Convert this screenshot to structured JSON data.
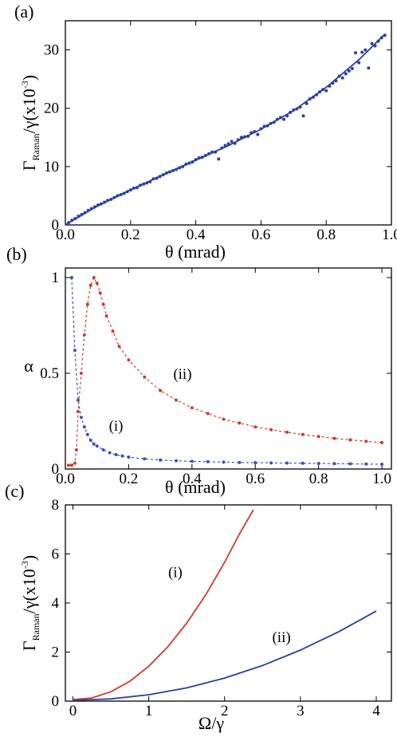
{
  "chart_data": [
    {
      "panel": "(a)",
      "type": "scatter",
      "xlabel": "θ (mrad)",
      "ylabel_main": "Γ",
      "ylabel_sub": "Raman",
      "ylabel_rest": "/γ(x10",
      "ylabel_sup": "-3",
      "ylabel_close": ")",
      "xlim": [
        0,
        1.0
      ],
      "ylim": [
        0,
        35
      ],
      "xticks": [
        0.0,
        0.2,
        0.4,
        0.6,
        0.8,
        1.0
      ],
      "xtick_labels": [
        "0.0",
        "0.2",
        "0.4",
        "0.6",
        "0.8",
        "1.0"
      ],
      "yticks": [
        0,
        10,
        20,
        30
      ],
      "ytick_labels": [
        "0",
        "10",
        "20",
        "30"
      ],
      "color": "#2B3FA0",
      "series": [
        {
          "style": "line",
          "x": [
            0,
            0.1,
            0.2,
            0.3,
            0.4,
            0.5,
            0.6,
            0.7,
            0.8,
            0.9,
            0.98
          ],
          "y": [
            0,
            3.3,
            6.0,
            8.6,
            11.1,
            13.6,
            16.4,
            19.6,
            23.6,
            28.3,
            32.7
          ]
        },
        {
          "style": "points",
          "x": [
            0.01,
            0.02,
            0.03,
            0.04,
            0.05,
            0.06,
            0.07,
            0.08,
            0.09,
            0.1,
            0.11,
            0.12,
            0.13,
            0.14,
            0.15,
            0.16,
            0.17,
            0.18,
            0.19,
            0.2,
            0.21,
            0.22,
            0.23,
            0.24,
            0.25,
            0.26,
            0.27,
            0.28,
            0.29,
            0.3,
            0.31,
            0.32,
            0.33,
            0.34,
            0.35,
            0.36,
            0.37,
            0.38,
            0.39,
            0.4,
            0.41,
            0.42,
            0.43,
            0.44,
            0.45,
            0.46,
            0.47,
            0.48,
            0.49,
            0.5,
            0.51,
            0.52,
            0.53,
            0.54,
            0.55,
            0.56,
            0.57,
            0.58,
            0.59,
            0.6,
            0.61,
            0.62,
            0.63,
            0.64,
            0.65,
            0.66,
            0.67,
            0.68,
            0.69,
            0.7,
            0.71,
            0.72,
            0.73,
            0.74,
            0.75,
            0.76,
            0.77,
            0.78,
            0.79,
            0.8,
            0.81,
            0.82,
            0.83,
            0.84,
            0.85,
            0.86,
            0.87,
            0.88,
            0.89,
            0.9,
            0.91,
            0.92,
            0.93,
            0.94,
            0.95,
            0.96,
            0.97,
            0.98
          ],
          "y": [
            0.4,
            0.8,
            1.1,
            1.5,
            1.8,
            2.1,
            2.5,
            2.8,
            3.1,
            3.4,
            3.6,
            3.9,
            4.2,
            4.4,
            4.7,
            5.0,
            5.2,
            5.4,
            5.7,
            6.0,
            6.3,
            6.4,
            6.8,
            7.0,
            7.2,
            7.4,
            7.9,
            8.0,
            8.3,
            8.6,
            8.9,
            9.1,
            9.3,
            9.5,
            9.8,
            10.0,
            10.4,
            10.6,
            10.8,
            11.2,
            11.5,
            11.6,
            11.9,
            12.2,
            12.5,
            12.5,
            11.3,
            13.2,
            13.6,
            13.9,
            14.3,
            14.0,
            14.6,
            15.0,
            15.1,
            15.2,
            15.8,
            16.0,
            15.5,
            16.5,
            16.9,
            17.0,
            17.4,
            17.6,
            18.1,
            18.4,
            18.1,
            18.7,
            19.3,
            19.7,
            19.9,
            20.2,
            18.7,
            20.8,
            21.6,
            21.9,
            22.3,
            22.8,
            23.2,
            23.0,
            23.8,
            24.3,
            24.7,
            25.5,
            25.2,
            25.9,
            26.4,
            26.8,
            29.5,
            27.8,
            29.6,
            30.0,
            26.9,
            31.1,
            30.7,
            31.5,
            32.1,
            32.5
          ]
        }
      ]
    },
    {
      "panel": "(b)",
      "type": "line",
      "xlabel": "θ (mrad)",
      "ylabel": "α",
      "xlim": [
        0,
        1.03
      ],
      "ylim": [
        0,
        1.05
      ],
      "xticks": [
        0.0,
        0.2,
        0.4,
        0.6,
        0.8,
        1.0
      ],
      "xtick_labels": [
        "0.0",
        "0.2",
        "0.4",
        "0.6",
        "0.8",
        "1.0"
      ],
      "yticks": [
        0,
        0.5,
        1
      ],
      "ytick_labels": [
        "0",
        "0.5",
        "1"
      ],
      "annotations": [
        {
          "text": "(i)",
          "x": 0.16,
          "y": 0.2
        },
        {
          "text": "(ii)",
          "x": 0.37,
          "y": 0.47
        }
      ],
      "series": [
        {
          "name": "(i)",
          "color": "#3552C0",
          "x": [
            0.02,
            0.03,
            0.04,
            0.05,
            0.06,
            0.07,
            0.08,
            0.09,
            0.1,
            0.12,
            0.14,
            0.16,
            0.18,
            0.2,
            0.25,
            0.3,
            0.35,
            0.4,
            0.45,
            0.5,
            0.55,
            0.6,
            0.65,
            0.7,
            0.75,
            0.8,
            0.85,
            0.9,
            0.95,
            1.0
          ],
          "y": [
            1.0,
            0.62,
            0.36,
            0.27,
            0.22,
            0.18,
            0.15,
            0.13,
            0.12,
            0.1,
            0.085,
            0.075,
            0.068,
            0.062,
            0.053,
            0.047,
            0.043,
            0.04,
            0.038,
            0.036,
            0.034,
            0.033,
            0.032,
            0.031,
            0.03,
            0.029,
            0.028,
            0.027,
            0.026,
            0.025
          ]
        },
        {
          "name": "(ii)",
          "color": "#D03A2A",
          "x": [
            0.01,
            0.02,
            0.03,
            0.035,
            0.04,
            0.05,
            0.06,
            0.07,
            0.08,
            0.09,
            0.1,
            0.11,
            0.12,
            0.13,
            0.15,
            0.17,
            0.2,
            0.25,
            0.3,
            0.35,
            0.4,
            0.45,
            0.5,
            0.55,
            0.6,
            0.65,
            0.7,
            0.75,
            0.8,
            0.85,
            0.9,
            0.95,
            1.0
          ],
          "y": [
            0.02,
            0.02,
            0.03,
            0.1,
            0.3,
            0.5,
            0.7,
            0.86,
            0.96,
            1.0,
            0.97,
            0.92,
            0.86,
            0.8,
            0.72,
            0.64,
            0.57,
            0.48,
            0.41,
            0.36,
            0.32,
            0.29,
            0.26,
            0.24,
            0.22,
            0.205,
            0.192,
            0.18,
            0.17,
            0.16,
            0.152,
            0.145,
            0.138
          ]
        }
      ]
    },
    {
      "panel": "(c)",
      "type": "line",
      "xlabel": "Ω/γ",
      "ylabel_main": "Γ",
      "ylabel_sub": "Raman",
      "ylabel_rest": "/γ(x10",
      "ylabel_sup": "-3",
      "ylabel_close": ")",
      "xlim": [
        -0.1,
        4.2
      ],
      "ylim": [
        0,
        8
      ],
      "xticks": [
        0,
        1,
        2,
        3,
        4
      ],
      "xtick_labels": [
        "0",
        "1",
        "2",
        "3",
        "4"
      ],
      "yticks": [
        0,
        2,
        4,
        6,
        8
      ],
      "ytick_labels": [
        "0",
        "2",
        "4",
        "6",
        "8"
      ],
      "annotations": [
        {
          "text": "(i)",
          "x": 1.35,
          "y": 5.05
        },
        {
          "text": "(ii)",
          "x": 2.75,
          "y": 2.4
        }
      ],
      "series": [
        {
          "name": "(i)",
          "color": "#D03A2A",
          "x": [
            0,
            0.25,
            0.5,
            0.75,
            1.0,
            1.25,
            1.5,
            1.75,
            2.0,
            2.2,
            2.38
          ],
          "y": [
            0.06,
            0.13,
            0.38,
            0.81,
            1.42,
            2.21,
            3.18,
            4.33,
            5.66,
            6.84,
            7.8
          ]
        },
        {
          "name": "(ii)",
          "color": "#2B3FA0",
          "x": [
            0,
            0.5,
            1.0,
            1.5,
            2.0,
            2.5,
            3.0,
            3.5,
            4.0
          ],
          "y": [
            0.03,
            0.09,
            0.26,
            0.54,
            0.94,
            1.45,
            2.08,
            2.82,
            3.67
          ]
        }
      ]
    }
  ]
}
